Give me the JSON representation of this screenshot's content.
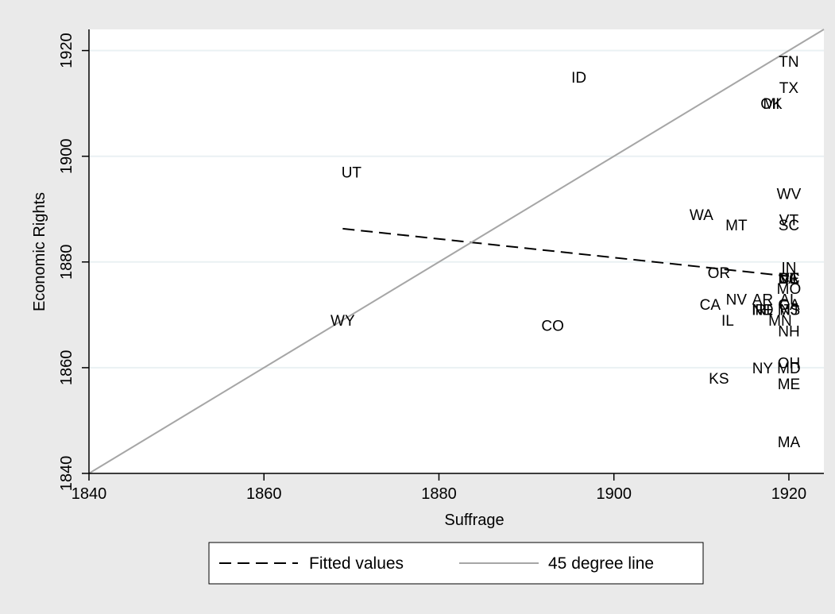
{
  "chart_data": {
    "type": "scatter",
    "title": "",
    "xlabel": "Suffrage",
    "ylabel": "Economic Rights",
    "xlim": [
      1840,
      1924
    ],
    "ylim": [
      1840,
      1924
    ],
    "xticks": [
      1840,
      1860,
      1880,
      1900,
      1920
    ],
    "yticks": [
      1840,
      1860,
      1880,
      1900,
      1920
    ],
    "grid": "horizontal",
    "legend_position": "bottom",
    "colors": {
      "background": "#eaeaea",
      "plot": "#ffffff",
      "fitted": "#000000",
      "diagonal": "#a6a6a6",
      "grid": "#eaf1f3"
    },
    "points": [
      {
        "label": "TN",
        "x": 1920,
        "y": 1918
      },
      {
        "label": "ID",
        "x": 1896,
        "y": 1915
      },
      {
        "label": "TX",
        "x": 1920,
        "y": 1913
      },
      {
        "label": "MI",
        "x": 1918,
        "y": 1910
      },
      {
        "label": "OK",
        "x": 1918,
        "y": 1910
      },
      {
        "label": "UT",
        "x": 1870,
        "y": 1897
      },
      {
        "label": "WV",
        "x": 1920,
        "y": 1893
      },
      {
        "label": "VT",
        "x": 1920,
        "y": 1888
      },
      {
        "label": "SC",
        "x": 1920,
        "y": 1887
      },
      {
        "label": "WA",
        "x": 1910,
        "y": 1889
      },
      {
        "label": "MT",
        "x": 1914,
        "y": 1887
      },
      {
        "label": "IN",
        "x": 1920,
        "y": 1879
      },
      {
        "label": "VA",
        "x": 1920,
        "y": 1877
      },
      {
        "label": "OR",
        "x": 1912,
        "y": 1878
      },
      {
        "label": "NC",
        "x": 1920,
        "y": 1877
      },
      {
        "label": "DE",
        "x": 1920,
        "y": 1877
      },
      {
        "label": "CT",
        "x": 1920,
        "y": 1877
      },
      {
        "label": "MO",
        "x": 1920,
        "y": 1875
      },
      {
        "label": "NV",
        "x": 1914,
        "y": 1873
      },
      {
        "label": "AR",
        "x": 1917,
        "y": 1873
      },
      {
        "label": "AL",
        "x": 1920,
        "y": 1873
      },
      {
        "label": "GA",
        "x": 1920,
        "y": 1872
      },
      {
        "label": "CA",
        "x": 1911,
        "y": 1872
      },
      {
        "label": "RI",
        "x": 1917,
        "y": 1871
      },
      {
        "label": "NE",
        "x": 1917,
        "y": 1871
      },
      {
        "label": "ND",
        "x": 1917,
        "y": 1871
      },
      {
        "label": "NJ",
        "x": 1920,
        "y": 1871
      },
      {
        "label": "MS",
        "x": 1920,
        "y": 1871
      },
      {
        "label": "IL",
        "x": 1913,
        "y": 1869
      },
      {
        "label": "MN",
        "x": 1919,
        "y": 1869
      },
      {
        "label": "WY",
        "x": 1869,
        "y": 1869
      },
      {
        "label": "CO",
        "x": 1893,
        "y": 1868
      },
      {
        "label": "NH",
        "x": 1920,
        "y": 1867
      },
      {
        "label": "OH",
        "x": 1920,
        "y": 1861
      },
      {
        "label": "NY",
        "x": 1917,
        "y": 1860
      },
      {
        "label": "MD",
        "x": 1920,
        "y": 1860
      },
      {
        "label": "KS",
        "x": 1912,
        "y": 1858
      },
      {
        "label": "ME",
        "x": 1920,
        "y": 1857
      },
      {
        "label": "MA",
        "x": 1920,
        "y": 1846
      }
    ],
    "series": [
      {
        "name": "Fitted values",
        "style": "dashed",
        "x": [
          1869,
          1920
        ],
        "y": [
          1886.3,
          1877.3
        ]
      },
      {
        "name": "45 degree line",
        "style": "solid",
        "x": [
          1840,
          1924
        ],
        "y": [
          1840,
          1924
        ]
      }
    ]
  }
}
